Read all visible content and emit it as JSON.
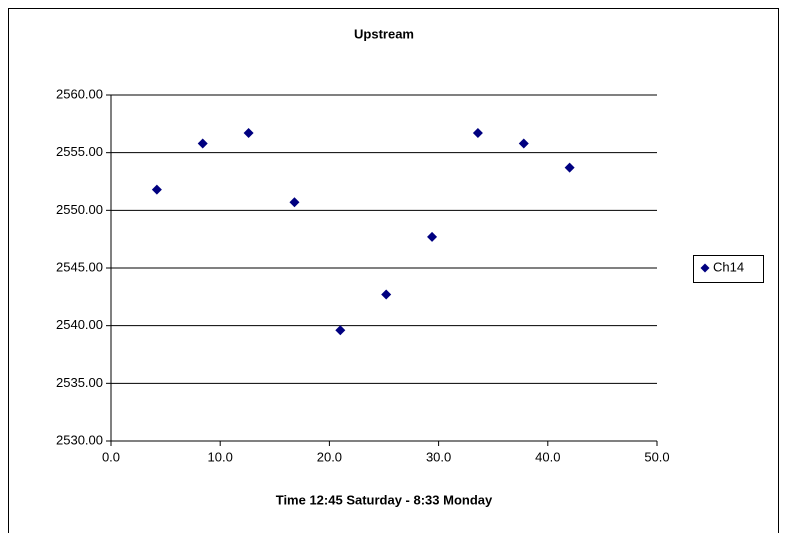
{
  "chart_data": {
    "type": "scatter",
    "title": "Upstream",
    "x_label": "Time 12:45 Saturday - 8:33 Monday",
    "series": [
      {
        "name": "Ch14",
        "color": "#000080",
        "x": [
          4.2,
          8.4,
          12.6,
          16.8,
          21.0,
          25.2,
          29.4,
          33.6,
          37.8,
          42.0
        ],
        "values": [
          2551.8,
          2555.8,
          2556.7,
          2550.7,
          2539.6,
          2542.7,
          2547.7,
          2556.7,
          2555.8,
          2553.7
        ]
      }
    ],
    "xlim": [
      0,
      50
    ],
    "xticks": [
      {
        "value": 0,
        "label": "0.0"
      },
      {
        "value": 10,
        "label": "10.0"
      },
      {
        "value": 20,
        "label": "20.0"
      },
      {
        "value": 30,
        "label": "30.0"
      },
      {
        "value": 40,
        "label": "40.0"
      },
      {
        "value": 50,
        "label": "50.0"
      }
    ],
    "ylim": [
      2530,
      2560
    ],
    "yticks": [
      {
        "value": 2530,
        "label": "2530.00"
      },
      {
        "value": 2535,
        "label": "2535.00"
      },
      {
        "value": 2540,
        "label": "2540.00"
      },
      {
        "value": 2545,
        "label": "2545.00"
      },
      {
        "value": 2550,
        "label": "2550.00"
      },
      {
        "value": 2555,
        "label": "2555.00"
      },
      {
        "value": 2560,
        "label": "2560.00"
      }
    ],
    "grid": true,
    "legend": "right"
  }
}
